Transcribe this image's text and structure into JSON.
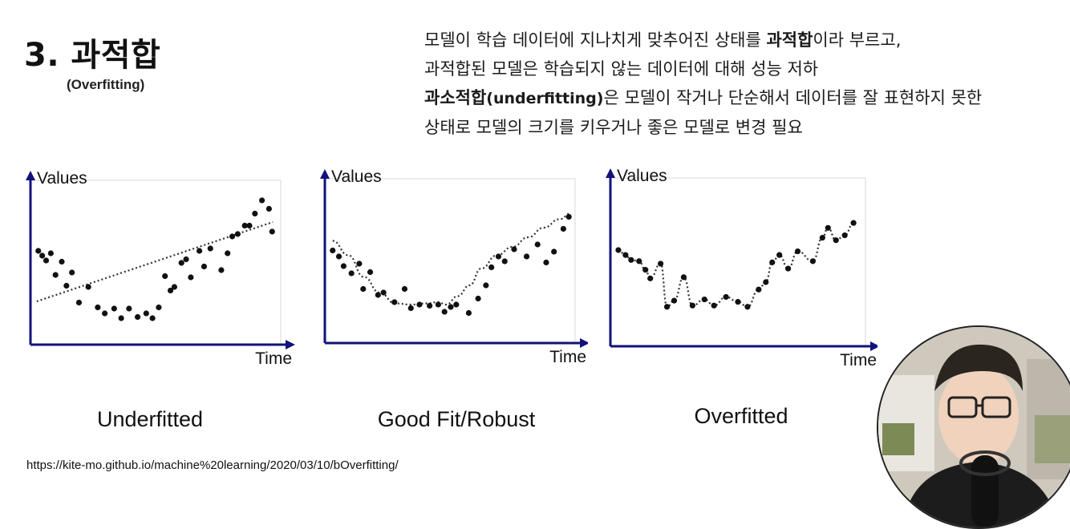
{
  "slide": {
    "title": "3. 과적합",
    "subtitle": "(Overfitting)",
    "description": {
      "line1_a": "모델이 학습 데이터에 지나치게 맞추어진 상태를 ",
      "line1_bold": "과적합",
      "line1_b": "이라 부르고,",
      "line2": "과적합된 모델은 학습되지 않는 데이터에 대해 성능 저하",
      "line3_bold": "과소적합",
      "line3_en": "(underfitting)",
      "line3_b": "은 모델이 작거나 단순해서 데이터를 잘 표현하지 못한",
      "line4": "상태로 모델의 크기를 키우거나 좋은 모델로 변경 필요"
    },
    "source_url": "https://kite-mo.github.io/machine%20learning/2020/03/10/bOverfitting/"
  },
  "colors": {
    "axis": "#12127a",
    "points": "#111111",
    "fit_line": "#333333"
  },
  "chart_data": [
    {
      "type": "scatter",
      "title": "Underfitted",
      "xlabel": "Time",
      "ylabel": "Values",
      "fit": "linear",
      "points": [
        [
          1,
          7.8
        ],
        [
          1.5,
          7.4
        ],
        [
          2,
          7.0
        ],
        [
          2.6,
          7.6
        ],
        [
          3.2,
          5.8
        ],
        [
          4,
          6.9
        ],
        [
          4.6,
          4.9
        ],
        [
          5.3,
          6.0
        ],
        [
          6.2,
          3.5
        ],
        [
          7.4,
          4.8
        ],
        [
          8.6,
          3.1
        ],
        [
          9.5,
          2.6
        ],
        [
          10.7,
          3.0
        ],
        [
          11.6,
          2.2
        ],
        [
          12.6,
          3.0
        ],
        [
          13.7,
          2.3
        ],
        [
          14.8,
          2.6
        ],
        [
          15.6,
          2.2
        ],
        [
          16.4,
          3.1
        ],
        [
          17.2,
          5.7
        ],
        [
          17.9,
          4.5
        ],
        [
          18.4,
          4.8
        ],
        [
          19.3,
          6.8
        ],
        [
          19.9,
          7.1
        ],
        [
          20.5,
          5.6
        ],
        [
          21.6,
          7.8
        ],
        [
          22.2,
          6.5
        ],
        [
          23,
          8.0
        ],
        [
          24.4,
          6.2
        ],
        [
          25.2,
          7.6
        ],
        [
          25.8,
          9.0
        ],
        [
          26.5,
          9.2
        ],
        [
          27.4,
          9.9
        ],
        [
          28,
          9.9
        ],
        [
          28.7,
          10.9
        ],
        [
          29.6,
          12.0
        ],
        [
          30.5,
          11.3
        ],
        [
          30.9,
          9.4
        ]
      ],
      "line": [
        [
          0.8,
          3.6
        ],
        [
          31,
          10.2
        ]
      ]
    },
    {
      "type": "scatter",
      "title": "Good Fit/Robust",
      "xlabel": "Time",
      "ylabel": "Values",
      "fit": "smooth",
      "points": [
        [
          1,
          7.7
        ],
        [
          1.8,
          7.2
        ],
        [
          2.4,
          6.4
        ],
        [
          3.4,
          5.8
        ],
        [
          4.4,
          6.6
        ],
        [
          4.9,
          4.5
        ],
        [
          5.8,
          5.9
        ],
        [
          6.8,
          4.0
        ],
        [
          7.5,
          4.2
        ],
        [
          8.9,
          3.4
        ],
        [
          10.2,
          4.5
        ],
        [
          11.0,
          2.9
        ],
        [
          12.1,
          3.2
        ],
        [
          13.4,
          3.1
        ],
        [
          14.5,
          3.2
        ],
        [
          15.3,
          2.6
        ],
        [
          16.1,
          3.0
        ],
        [
          16.8,
          3.2
        ],
        [
          18.4,
          2.5
        ],
        [
          19.6,
          3.7
        ],
        [
          20.6,
          4.8
        ],
        [
          21.3,
          6.3
        ],
        [
          22.2,
          7.2
        ],
        [
          23.0,
          6.8
        ],
        [
          24.2,
          7.8
        ],
        [
          25.8,
          7.2
        ],
        [
          27.2,
          8.2
        ],
        [
          28.3,
          6.7
        ],
        [
          29.3,
          7.6
        ],
        [
          30.5,
          9.5
        ],
        [
          31.2,
          10.5
        ]
      ],
      "line": [
        [
          1,
          8.5
        ],
        [
          3,
          7.3
        ],
        [
          5,
          5.5
        ],
        [
          7,
          4.2
        ],
        [
          9,
          3.3
        ],
        [
          11,
          3.2
        ],
        [
          13,
          3.3
        ],
        [
          14.5,
          3.4
        ],
        [
          15.5,
          3.2
        ],
        [
          17,
          3.9
        ],
        [
          18.5,
          4.8
        ],
        [
          20,
          6.2
        ],
        [
          22,
          7.3
        ],
        [
          24,
          8.0
        ],
        [
          26,
          8.8
        ],
        [
          28,
          9.6
        ],
        [
          30,
          10.3
        ],
        [
          31.5,
          10.8
        ]
      ]
    },
    {
      "type": "scatter",
      "title": "Overfitted",
      "xlabel": "Time",
      "ylabel": "Values",
      "fit": "overfit",
      "points": [
        [
          1,
          7.8
        ],
        [
          1.9,
          7.4
        ],
        [
          2.6,
          7.0
        ],
        [
          3.6,
          6.9
        ],
        [
          4.4,
          6.2
        ],
        [
          5.0,
          5.5
        ],
        [
          6.3,
          6.7
        ],
        [
          7.1,
          3.2
        ],
        [
          8.0,
          3.7
        ],
        [
          9.2,
          5.6
        ],
        [
          10.3,
          3.3
        ],
        [
          11.8,
          3.8
        ],
        [
          13.0,
          3.3
        ],
        [
          14.5,
          4.0
        ],
        [
          16.0,
          3.6
        ],
        [
          17.2,
          3.2
        ],
        [
          18.6,
          4.6
        ],
        [
          19.5,
          5.2
        ],
        [
          20.3,
          6.8
        ],
        [
          21.2,
          7.4
        ],
        [
          22.3,
          6.3
        ],
        [
          23.5,
          7.7
        ],
        [
          25.4,
          6.9
        ],
        [
          26.6,
          8.8
        ],
        [
          27.3,
          9.6
        ],
        [
          28.3,
          8.6
        ],
        [
          29.4,
          9.0
        ],
        [
          30.5,
          10.0
        ]
      ],
      "line": [
        [
          1,
          7.8
        ],
        [
          1.9,
          7.4
        ],
        [
          2.6,
          7.0
        ],
        [
          3.6,
          6.9
        ],
        [
          4.4,
          6.2
        ],
        [
          5.0,
          5.5
        ],
        [
          6.3,
          6.7
        ],
        [
          7.1,
          3.2
        ],
        [
          8.0,
          3.7
        ],
        [
          9.2,
          5.6
        ],
        [
          10.3,
          3.3
        ],
        [
          11.8,
          3.8
        ],
        [
          13.0,
          3.3
        ],
        [
          14.5,
          4.0
        ],
        [
          16.0,
          3.6
        ],
        [
          17.2,
          3.2
        ],
        [
          18.6,
          4.6
        ],
        [
          19.5,
          5.2
        ],
        [
          20.3,
          6.8
        ],
        [
          21.2,
          7.4
        ],
        [
          22.3,
          6.3
        ],
        [
          23.5,
          7.7
        ],
        [
          25.4,
          6.9
        ],
        [
          26.6,
          8.8
        ],
        [
          27.3,
          9.6
        ],
        [
          28.3,
          8.6
        ],
        [
          29.4,
          9.0
        ],
        [
          30.5,
          10.0
        ]
      ]
    }
  ]
}
